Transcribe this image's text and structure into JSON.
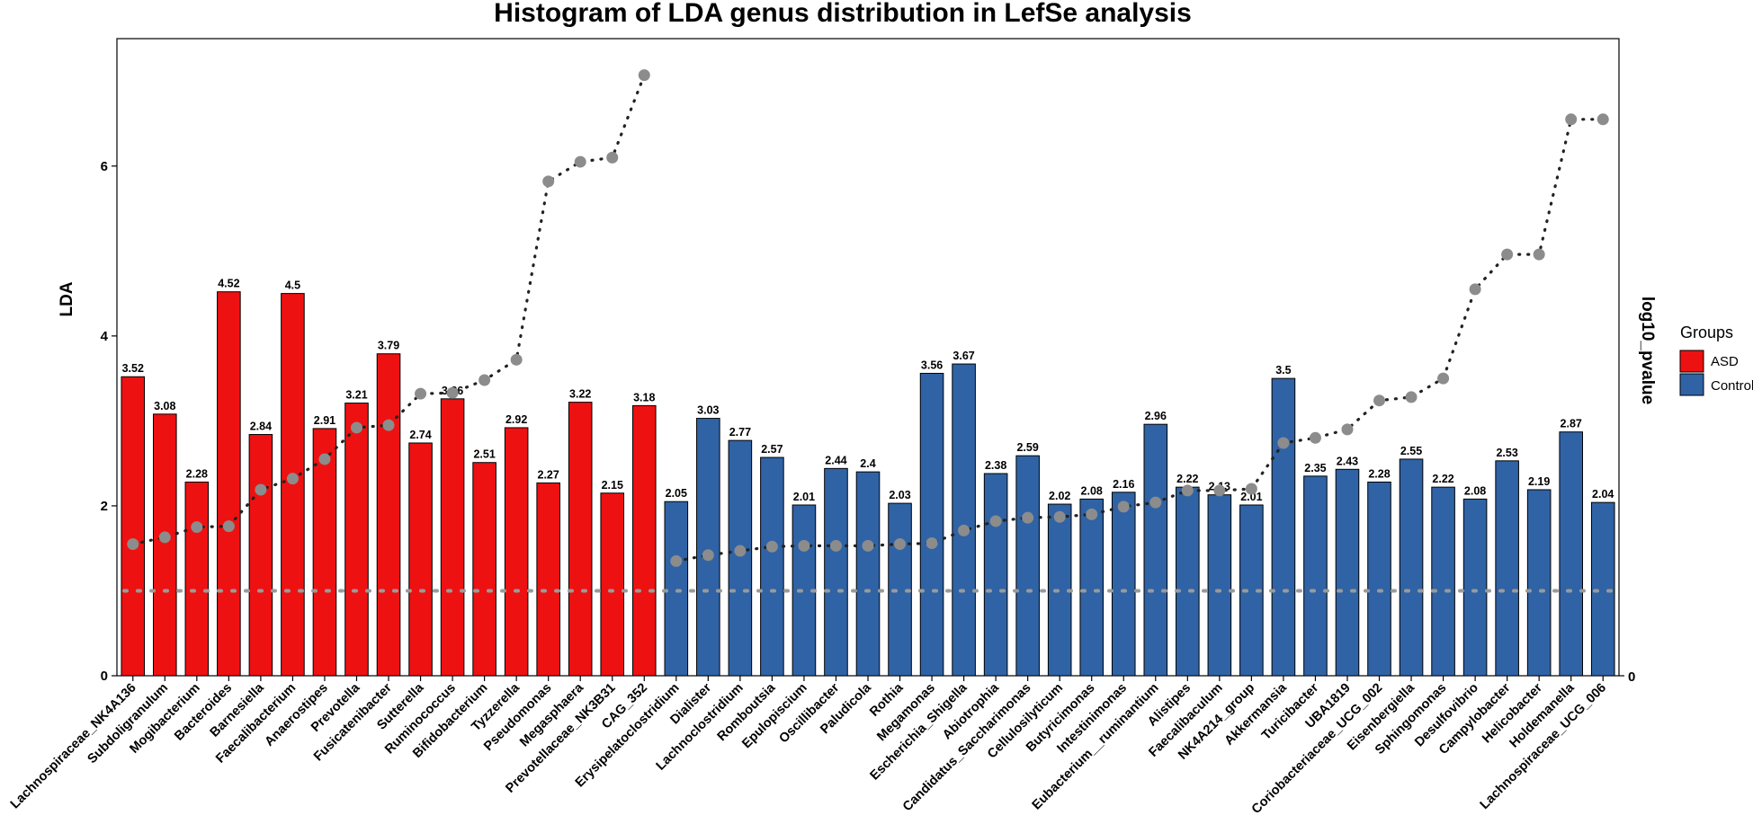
{
  "chart_data": {
    "type": "bar",
    "title": "Histogram of LDA genus distribution in LefSe analysis",
    "ylabel": "LDA",
    "y2label": "log10_pvalue",
    "ylim": [
      0,
      7.5
    ],
    "yticks": [
      0,
      2,
      4,
      6
    ],
    "yticks_labels": [
      "0",
      "2",
      "4",
      "6"
    ],
    "y2ticks_labels": [
      "0"
    ],
    "threshold_line": 1.0,
    "legend": {
      "title": "Groups",
      "position": "right",
      "entries": [
        {
          "label": "ASD",
          "color": "#ee1111"
        },
        {
          "label": "Control",
          "color": "#2f63a5"
        }
      ]
    },
    "colors": {
      "ASD": "#ee1111",
      "Control": "#2f63a5",
      "points": "#8c8c8c"
    },
    "bars": [
      {
        "name": "Lachnospiraceae_NK4A136",
        "value": 3.52,
        "label": "3.52",
        "group": "ASD",
        "pvalue": 1.55
      },
      {
        "name": "Subdoligranulum",
        "value": 3.08,
        "label": "3.08",
        "group": "ASD",
        "pvalue": 1.63
      },
      {
        "name": "Mogibacterium",
        "value": 2.28,
        "label": "2.28",
        "group": "ASD",
        "pvalue": 1.75
      },
      {
        "name": "Bacteroides",
        "value": 4.52,
        "label": "4.52",
        "group": "ASD",
        "pvalue": 1.76
      },
      {
        "name": "Barnesiella",
        "value": 2.84,
        "label": "2.84",
        "group": "ASD",
        "pvalue": 2.19
      },
      {
        "name": "Faecalibacterium",
        "value": 4.5,
        "label": "4.5",
        "group": "ASD",
        "pvalue": 2.32
      },
      {
        "name": "Anaerostipes",
        "value": 2.91,
        "label": "2.91",
        "group": "ASD",
        "pvalue": 2.55
      },
      {
        "name": "Prevotella",
        "value": 3.21,
        "label": "3.21",
        "group": "ASD",
        "pvalue": 2.92
      },
      {
        "name": "Fusicatenibacter",
        "value": 3.79,
        "label": "3.79",
        "group": "ASD",
        "pvalue": 2.95
      },
      {
        "name": "Sutterella",
        "value": 2.74,
        "label": "2.74",
        "group": "ASD",
        "pvalue": 3.32
      },
      {
        "name": "Ruminococcus",
        "value": 3.26,
        "label": "3.26",
        "group": "ASD",
        "pvalue": 3.33
      },
      {
        "name": "Bifidobacterium",
        "value": 2.51,
        "label": "2.51",
        "group": "ASD",
        "pvalue": 3.48
      },
      {
        "name": "Tyzzerella",
        "value": 2.92,
        "label": "2.92",
        "group": "ASD",
        "pvalue": 3.72
      },
      {
        "name": "Pseudomonas",
        "value": 2.27,
        "label": "2.27",
        "group": "ASD",
        "pvalue": 5.82
      },
      {
        "name": "Megasphaera",
        "value": 3.22,
        "label": "3.22",
        "group": "ASD",
        "pvalue": 6.05
      },
      {
        "name": "Prevotellaceae_NK3B31",
        "value": 2.15,
        "label": "2.15",
        "group": "ASD",
        "pvalue": 6.1
      },
      {
        "name": "CAG_352",
        "value": 3.18,
        "label": "3.18",
        "group": "ASD",
        "pvalue": 7.07
      },
      {
        "name": "Erysipelatoclostridium",
        "value": 2.05,
        "label": "2.05",
        "group": "Control",
        "pvalue": 1.35
      },
      {
        "name": "Dialister",
        "value": 3.03,
        "label": "3.03",
        "group": "Control",
        "pvalue": 1.42
      },
      {
        "name": "Lachnoclostridium",
        "value": 2.77,
        "label": "2.77",
        "group": "Control",
        "pvalue": 1.47
      },
      {
        "name": "Romboutsia",
        "value": 2.57,
        "label": "2.57",
        "group": "Control",
        "pvalue": 1.52
      },
      {
        "name": "Epulopiscium",
        "value": 2.01,
        "label": "2.01",
        "group": "Control",
        "pvalue": 1.53
      },
      {
        "name": "Oscillibacter",
        "value": 2.44,
        "label": "2.44",
        "group": "Control",
        "pvalue": 1.53
      },
      {
        "name": "Paludicola",
        "value": 2.4,
        "label": "2.4",
        "group": "Control",
        "pvalue": 1.53
      },
      {
        "name": "Rothia",
        "value": 2.03,
        "label": "2.03",
        "group": "Control",
        "pvalue": 1.55
      },
      {
        "name": "Megamonas",
        "value": 3.56,
        "label": "3.56",
        "group": "Control",
        "pvalue": 1.56
      },
      {
        "name": "Escherichia_Shigella",
        "value": 3.67,
        "label": "3.67",
        "group": "Control",
        "pvalue": 1.71
      },
      {
        "name": "Abiotrophia",
        "value": 2.38,
        "label": "2.38",
        "group": "Control",
        "pvalue": 1.82
      },
      {
        "name": "Candidatus_Saccharimonas",
        "value": 2.59,
        "label": "2.59",
        "group": "Control",
        "pvalue": 1.86
      },
      {
        "name": "Cellulosilyticum",
        "value": 2.02,
        "label": "2.02",
        "group": "Control",
        "pvalue": 1.87
      },
      {
        "name": "Butyricimonas",
        "value": 2.08,
        "label": "2.08",
        "group": "Control",
        "pvalue": 1.9
      },
      {
        "name": "Intestinimonas",
        "value": 2.16,
        "label": "2.16",
        "group": "Control",
        "pvalue": 1.99
      },
      {
        "name": "Eubacterium__ruminantium",
        "value": 2.96,
        "label": "2.96",
        "group": "Control",
        "pvalue": 2.04
      },
      {
        "name": "Alistipes",
        "value": 2.22,
        "label": "2.22",
        "group": "Control",
        "pvalue": 2.18
      },
      {
        "name": "Faecalibaculum",
        "value": 2.13,
        "label": "2.13",
        "group": "Control",
        "pvalue": 2.18
      },
      {
        "name": "NK4A214_group",
        "value": 2.01,
        "label": "2.01",
        "group": "Control",
        "pvalue": 2.2
      },
      {
        "name": "Akkermansia",
        "value": 3.5,
        "label": "3.5",
        "group": "Control",
        "pvalue": 2.74
      },
      {
        "name": "Turicibacter",
        "value": 2.35,
        "label": "2.35",
        "group": "Control",
        "pvalue": 2.8
      },
      {
        "name": "UBA1819",
        "value": 2.43,
        "label": "2.43",
        "group": "Control",
        "pvalue": 2.9
      },
      {
        "name": "Coriobacteriaceae_UCG_002",
        "value": 2.28,
        "label": "2.28",
        "group": "Control",
        "pvalue": 3.24
      },
      {
        "name": "Eisenbergiella",
        "value": 2.55,
        "label": "2.55",
        "group": "Control",
        "pvalue": 3.28
      },
      {
        "name": "Sphingomonas",
        "value": 2.22,
        "label": "2.22",
        "group": "Control",
        "pvalue": 3.5
      },
      {
        "name": "Desulfovibrio",
        "value": 2.08,
        "label": "2.08",
        "group": "Control",
        "pvalue": 4.55
      },
      {
        "name": "Campylobacter",
        "value": 2.53,
        "label": "2.53",
        "group": "Control",
        "pvalue": 4.96
      },
      {
        "name": "Helicobacter",
        "value": 2.19,
        "label": "2.19",
        "group": "Control",
        "pvalue": 4.96
      },
      {
        "name": "Holdemanella",
        "value": 2.87,
        "label": "2.87",
        "group": "Control",
        "pvalue": 6.55
      },
      {
        "name": "Lachnospiraceae_UCG_006",
        "value": 2.04,
        "label": "2.04",
        "group": "Control",
        "pvalue": 6.55
      }
    ]
  }
}
